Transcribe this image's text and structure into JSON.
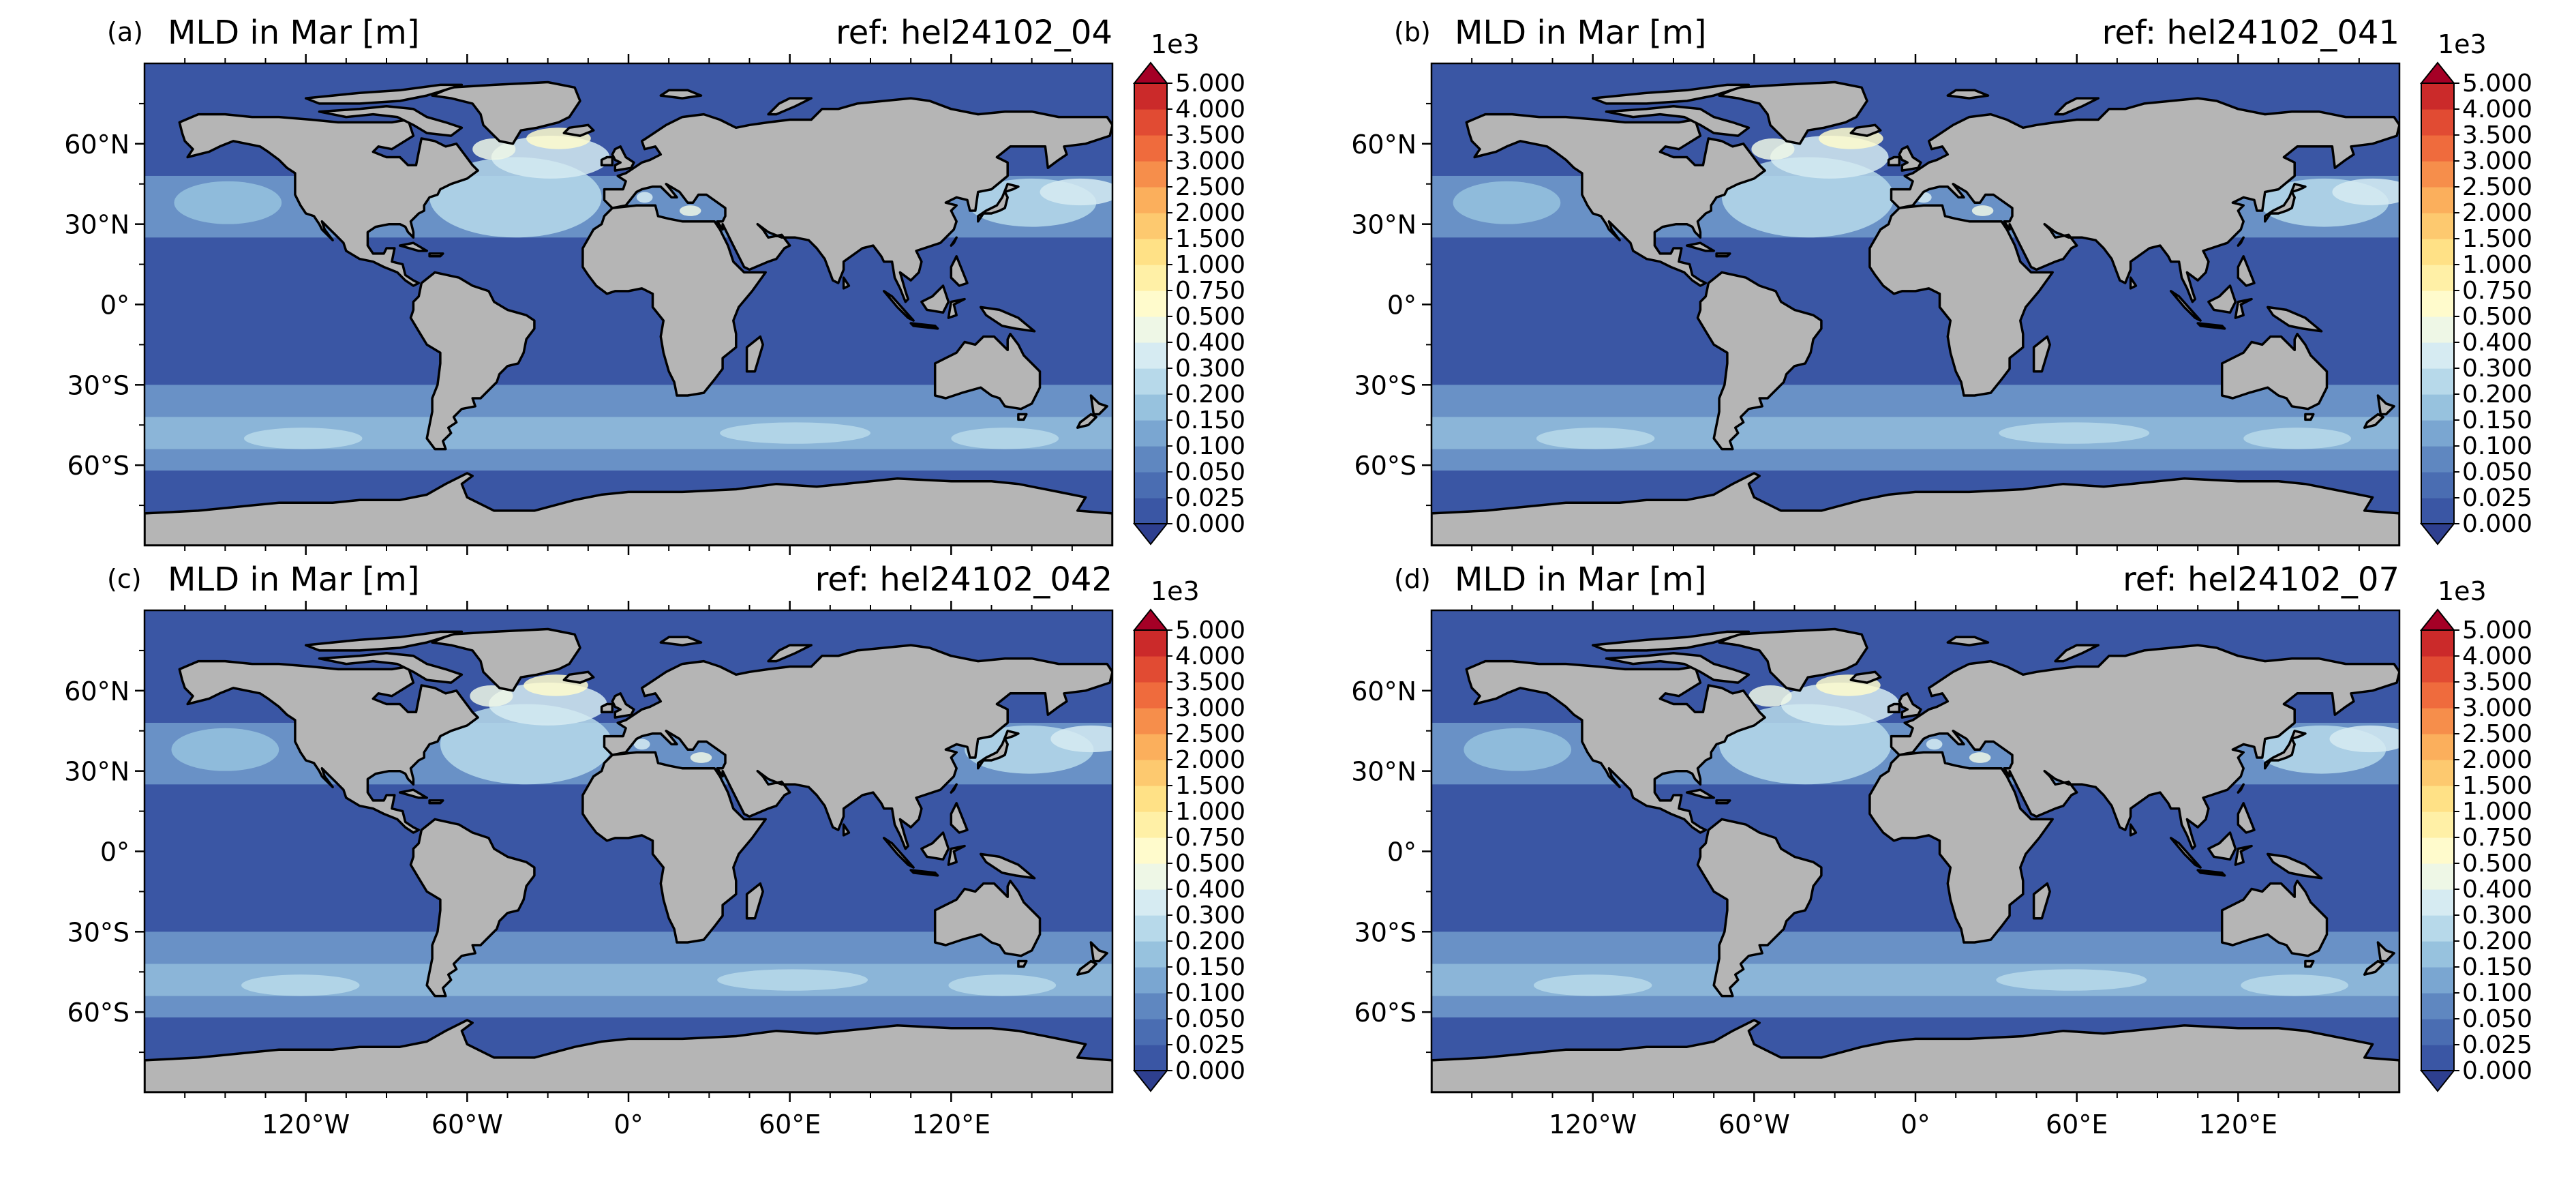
{
  "figure": {
    "colorbar": {
      "multiplier": "1e3",
      "levels": [
        "0.000",
        "0.025",
        "0.050",
        "0.100",
        "0.150",
        "0.200",
        "0.300",
        "0.400",
        "0.500",
        "0.750",
        "1.000",
        "1.500",
        "2.000",
        "2.500",
        "3.000",
        "3.500",
        "4.000",
        "5.000"
      ],
      "colors": [
        "#3a56a4",
        "#4a6db2",
        "#5f87c0",
        "#7aa6d1",
        "#97c2de",
        "#b7d9ea",
        "#d6ebf2",
        "#eef7e6",
        "#fffbcc",
        "#fff0a6",
        "#ffe186",
        "#fdc96f",
        "#fbaf5c",
        "#f68e4b",
        "#ef6b3d",
        "#e14b33",
        "#cb2a2a",
        "#b10f26"
      ],
      "under_color": "#2e3f8f",
      "over_color": "#a50026"
    },
    "colors": {
      "land": "#b5b5b5",
      "coast": "#000000",
      "ocean_base": "#3a56a4"
    },
    "axes": {
      "lat_ticks": [
        "60°N",
        "30°N",
        "0°",
        "30°S",
        "60°S"
      ],
      "lon_ticks": [
        "120°W",
        "60°W",
        "0°",
        "60°E",
        "120°E"
      ]
    },
    "panels": [
      {
        "label": "(a)",
        "title": "MLD in Mar [m]",
        "ref": "ref: hel24102_04"
      },
      {
        "label": "(b)",
        "title": "MLD in Mar [m]",
        "ref": "ref: hel24102_041"
      },
      {
        "label": "(c)",
        "title": "MLD in Mar [m]",
        "ref": "ref: hel24102_042"
      },
      {
        "label": "(d)",
        "title": "MLD in Mar [m]",
        "ref": "ref: hel24102_07"
      }
    ]
  }
}
